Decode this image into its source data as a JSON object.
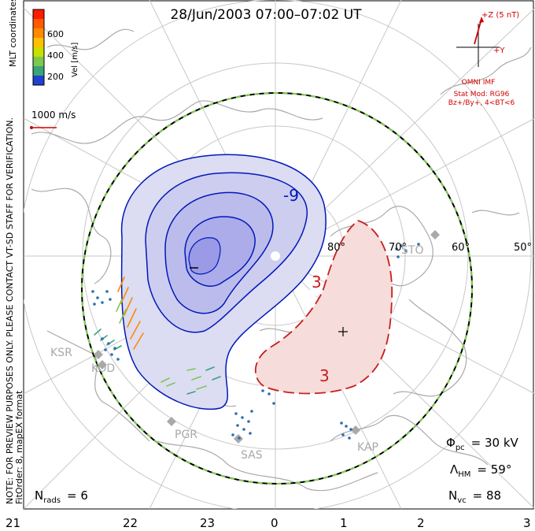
{
  "title": "28/Jun/2003 07:00–07:02 UT",
  "side_text": {
    "line1": "NOTE: FOR PREVIEW PURPOSES ONLY. PLEASE CONTACT VT-SD STAFF FOR VERIFICATION.",
    "line2": "FitOrder: 8, mapEX format"
  },
  "coords_label": "MLT coordinates",
  "colorbar": {
    "label": "Vel [m/s]",
    "ticks": [
      "600",
      "400",
      "200"
    ],
    "colors": [
      "#ff1a00",
      "#ff7a00",
      "#ffc000",
      "#c8e000",
      "#7ec850",
      "#3aa37a",
      "#2a6fb0",
      "#2040d0"
    ]
  },
  "vector_scale_label": "1000 m/s",
  "imf": {
    "z_label": "+Z (5 nT)",
    "y_label": "+Y",
    "source": "OMNI IMF",
    "model_line1": "Stat Mod: RG96",
    "model_line2": "Bz+/By+, 4<BT<6"
  },
  "lat_labels": [
    "80°",
    "70°",
    "60°",
    "50°"
  ],
  "mlt_labels": [
    "21",
    "22",
    "23",
    "0",
    "1",
    "2",
    "3"
  ],
  "stations": [
    "KSR",
    "KOD",
    "PGR",
    "SAS",
    "KAP",
    "STO"
  ],
  "contour_labels": {
    "neg": "-9",
    "pos": "3",
    "pos2": "3",
    "neg_min": "–",
    "pos_max": "+"
  },
  "stats": {
    "phi_sym": "Φ",
    "phi_sub": "pc",
    "phi_val": "= 30 kV",
    "lam_sym": "Λ",
    "lam_sub": "HM",
    "lam_val": "= 59°",
    "nvc_sym": "N",
    "nvc_sub": "vc",
    "nvc_val": "= 88",
    "nrads_sym": "N",
    "nrads_sub": "rads",
    "nrads_val": "= 6"
  },
  "colors": {
    "neg_fill": "#dcdcf2",
    "neg_line": "#0018b8",
    "pos_fill": "#f6dcda",
    "pos_line": "#c81e1e",
    "coast": "#a9a9a9",
    "grid": "#c8c8c8"
  }
}
